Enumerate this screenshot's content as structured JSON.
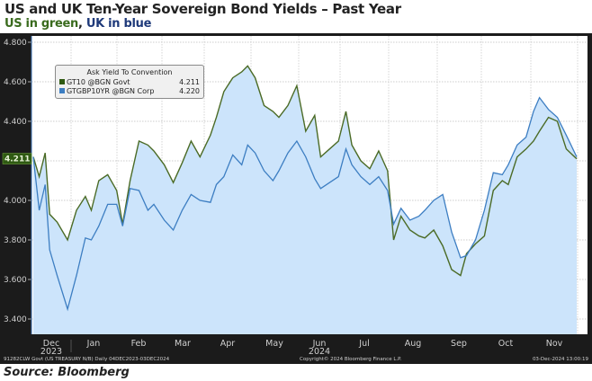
{
  "header": {
    "title": "US and UK Ten-Year Sovereign Bond Yields – Past Year",
    "subtitle_us": "US in green",
    "subtitle_sep": ", ",
    "subtitle_uk": "UK in blue"
  },
  "source": "Source: Bloomberg",
  "legend": {
    "title": "Ask Yield To Convention",
    "items": [
      {
        "name": "GT10 @BGN Govt",
        "value": "4.211",
        "color": "#2f5a12"
      },
      {
        "name": "GTGBP10YR @BGN Corp",
        "value": "4.220",
        "color": "#3d7ec2"
      }
    ]
  },
  "footer": {
    "left": "91282CLW Govt (US TREASURY N/B)  Daily 04DEC2023-03DEC2024",
    "center": "Copyright© 2024 Bloomberg Finance L.P.",
    "right": "03-Dec-2024 13:00:19"
  },
  "last_value_label": "4.211",
  "colors": {
    "us": "#4b6b26",
    "uk": "#3d7ec2",
    "fill": "#cce4fb",
    "last_badge": "#2f5a12"
  },
  "chart_data": {
    "type": "line",
    "title": "US and UK Ten-Year Sovereign Bond Yields – Past Year",
    "xlabel": "",
    "ylabel": "Ask Yield To Convention",
    "ylim": [
      3.33,
      4.87
    ],
    "y_ticks": [
      "3.400",
      "3.600",
      "3.800",
      "4.000",
      "4.200",
      "4.400",
      "4.600",
      "4.800"
    ],
    "y_tick_values": [
      3.4,
      3.6,
      3.8,
      4.0,
      4.2,
      4.4,
      4.6,
      4.8
    ],
    "x_ticks": [
      "Dec",
      "Jan",
      "Feb",
      "Mar",
      "Apr",
      "May",
      "Jun",
      "Jul",
      "Aug",
      "Sep",
      "Oct",
      "Nov"
    ],
    "x_year_labels": [
      {
        "under": "Dec",
        "text": "2023"
      },
      {
        "under": "Jun",
        "text": "2024"
      }
    ],
    "x_range": [
      "2023-12-04",
      "2024-12-03"
    ],
    "grid": true,
    "legend_position": "top-left",
    "x": [
      "2023-12-04",
      "2023-12-08",
      "2023-12-12",
      "2023-12-15",
      "2023-12-20",
      "2023-12-27",
      "2024-01-02",
      "2024-01-08",
      "2024-01-12",
      "2024-01-17",
      "2024-01-23",
      "2024-01-29",
      "2024-02-02",
      "2024-02-07",
      "2024-02-13",
      "2024-02-19",
      "2024-02-23",
      "2024-03-01",
      "2024-03-07",
      "2024-03-13",
      "2024-03-19",
      "2024-03-25",
      "2024-04-01",
      "2024-04-05",
      "2024-04-10",
      "2024-04-16",
      "2024-04-22",
      "2024-04-26",
      "2024-05-01",
      "2024-05-07",
      "2024-05-13",
      "2024-05-17",
      "2024-05-23",
      "2024-05-29",
      "2024-06-04",
      "2024-06-10",
      "2024-06-14",
      "2024-06-20",
      "2024-06-26",
      "2024-07-01",
      "2024-07-05",
      "2024-07-11",
      "2024-07-17",
      "2024-07-23",
      "2024-07-29",
      "2024-08-02",
      "2024-08-07",
      "2024-08-13",
      "2024-08-19",
      "2024-08-23",
      "2024-08-29",
      "2024-09-04",
      "2024-09-10",
      "2024-09-16",
      "2024-09-20",
      "2024-09-26",
      "2024-10-02",
      "2024-10-08",
      "2024-10-14",
      "2024-10-18",
      "2024-10-24",
      "2024-10-30",
      "2024-11-04",
      "2024-11-08",
      "2024-11-14",
      "2024-11-20",
      "2024-11-26",
      "2024-12-03"
    ],
    "series": [
      {
        "name": "GT10 @BGN Govt (US)",
        "last": 4.211,
        "values": [
          4.22,
          4.12,
          4.24,
          3.93,
          3.89,
          3.8,
          3.95,
          4.02,
          3.95,
          4.1,
          4.13,
          4.05,
          3.88,
          4.1,
          4.3,
          4.28,
          4.25,
          4.18,
          4.09,
          4.19,
          4.3,
          4.22,
          4.33,
          4.42,
          4.55,
          4.62,
          4.65,
          4.68,
          4.62,
          4.48,
          4.45,
          4.42,
          4.48,
          4.58,
          4.35,
          4.43,
          4.22,
          4.26,
          4.3,
          4.45,
          4.28,
          4.2,
          4.16,
          4.25,
          4.15,
          3.8,
          3.92,
          3.85,
          3.82,
          3.81,
          3.85,
          3.77,
          3.65,
          3.62,
          3.73,
          3.78,
          3.82,
          4.05,
          4.1,
          4.08,
          4.22,
          4.26,
          4.3,
          4.35,
          4.42,
          4.4,
          4.26,
          4.21
        ]
      },
      {
        "name": "GTGBP10YR @BGN Corp (UK)",
        "last": 4.22,
        "values": [
          4.22,
          3.95,
          4.08,
          3.75,
          3.62,
          3.45,
          3.62,
          3.81,
          3.8,
          3.87,
          3.98,
          3.98,
          3.87,
          4.06,
          4.05,
          3.95,
          3.98,
          3.9,
          3.85,
          3.95,
          4.03,
          4.0,
          3.99,
          4.08,
          4.12,
          4.23,
          4.18,
          4.28,
          4.24,
          4.15,
          4.1,
          4.15,
          4.24,
          4.3,
          4.22,
          4.11,
          4.06,
          4.09,
          4.12,
          4.26,
          4.18,
          4.12,
          4.08,
          4.12,
          4.05,
          3.88,
          3.96,
          3.9,
          3.92,
          3.95,
          4.0,
          4.03,
          3.84,
          3.71,
          3.72,
          3.8,
          3.95,
          4.14,
          4.13,
          4.18,
          4.28,
          4.32,
          4.45,
          4.52,
          4.46,
          4.42,
          4.33,
          4.22
        ]
      }
    ]
  }
}
